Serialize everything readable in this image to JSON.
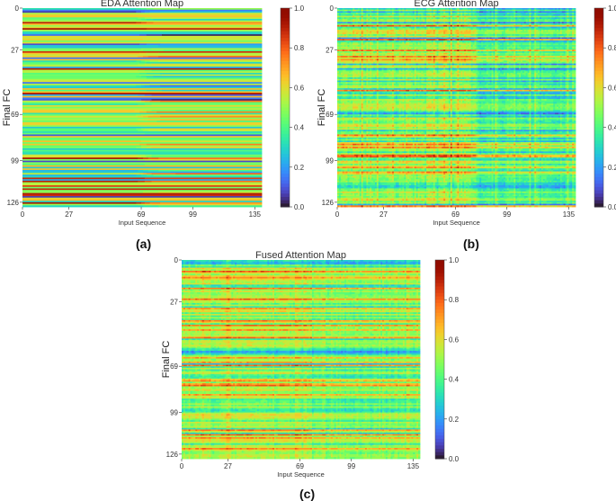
{
  "chart_data": [
    {
      "type": "heatmap",
      "title": "EDA Attention Map",
      "xlabel": "Input Sequence",
      "ylabel": "Final FC",
      "xticks": [
        "0",
        "27",
        "69",
        "99",
        "135"
      ],
      "xtick_values": [
        0,
        27,
        69,
        99,
        135
      ],
      "yticks": [
        "0",
        "27",
        "69",
        "99",
        "126"
      ],
      "ytick_values": [
        0,
        27,
        69,
        99,
        126
      ],
      "xlim": [
        0,
        139
      ],
      "ylim": [
        0,
        129
      ],
      "colorbar": {
        "ticks": [
          "1.0",
          "0.8",
          "0.6",
          "0.4",
          "0.2",
          "0.0"
        ],
        "tick_values": [
          1.0,
          0.8,
          0.6,
          0.4,
          0.2,
          0.0
        ],
        "range": [
          0,
          1
        ]
      },
      "colormap": "turbo",
      "pattern": "row-banded, shift after column 69",
      "label": "(a)"
    },
    {
      "type": "heatmap",
      "title": "ECG Attention Map",
      "xlabel": "Input Sequence",
      "ylabel": "Final FC",
      "xticks": [
        "0",
        "27",
        "69",
        "99",
        "135"
      ],
      "xtick_values": [
        0,
        27,
        69,
        99,
        135
      ],
      "yticks": [
        "0",
        "27",
        "69",
        "99",
        "126"
      ],
      "ytick_values": [
        0,
        27,
        69,
        99,
        126
      ],
      "xlim": [
        0,
        139
      ],
      "ylim": [
        0,
        129
      ],
      "colorbar": {
        "ticks": [
          "1.0",
          "0.8",
          "0.6",
          "0.4",
          "0.2",
          "0.0"
        ],
        "tick_values": [
          1.0,
          0.8,
          0.6,
          0.4,
          0.2,
          0.0
        ],
        "range": [
          0,
          1
        ]
      },
      "colormap": "turbo",
      "pattern": "row and column mixed, darker after column 80",
      "label": "(b)"
    },
    {
      "type": "heatmap",
      "title": "Fused Attention Map",
      "xlabel": "Input Sequence",
      "ylabel": "Final FC",
      "xticks": [
        "0",
        "27",
        "69",
        "99",
        "135"
      ],
      "xtick_values": [
        0,
        27,
        69,
        99,
        135
      ],
      "yticks": [
        "0",
        "27",
        "69",
        "99",
        "126"
      ],
      "ytick_values": [
        0,
        27,
        69,
        99,
        126
      ],
      "xlim": [
        0,
        139
      ],
      "ylim": [
        0,
        129
      ],
      "colorbar": {
        "ticks": [
          "1.0",
          "0.8",
          "0.6",
          "0.4",
          "0.2",
          "0.0"
        ],
        "tick_values": [
          1.0,
          0.8,
          0.6,
          0.4,
          0.2,
          0.0
        ],
        "range": [
          0,
          1
        ]
      },
      "colormap": "turbo",
      "pattern": "fusion of EDA and ECG",
      "label": "(c)"
    }
  ]
}
